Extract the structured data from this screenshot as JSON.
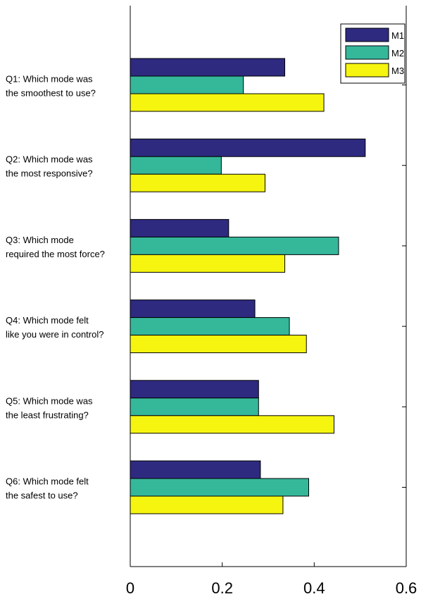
{
  "chart_data": {
    "type": "bar",
    "orientation": "horizontal",
    "categories": [
      [
        "Q1: Which mode was",
        "the smoothest to use?"
      ],
      [
        "Q2: Which mode was",
        "the most responsive?"
      ],
      [
        "Q3: Which mode",
        "required the most force?"
      ],
      [
        "Q4: Which mode felt",
        "like you were in control?"
      ],
      [
        "Q5: Which mode was",
        "the least frustrating?"
      ],
      [
        "Q6: Which mode felt",
        "the safest to use?"
      ]
    ],
    "series": [
      {
        "name": "M1",
        "color": "#2e2a80",
        "values": [
          0.336,
          0.511,
          0.214,
          0.271,
          0.279,
          0.283
        ]
      },
      {
        "name": "M2",
        "color": "#35b79a",
        "values": [
          0.246,
          0.198,
          0.453,
          0.346,
          0.279,
          0.388
        ]
      },
      {
        "name": "M3",
        "color": "#f5f50f",
        "values": [
          0.421,
          0.293,
          0.336,
          0.383,
          0.443,
          0.332
        ]
      }
    ],
    "xlim": [
      0,
      0.6
    ],
    "xticks": [
      "0",
      "0.2",
      "0.4",
      "0.6"
    ],
    "title": "",
    "xlabel": "",
    "ylabel": "",
    "grid": false,
    "legend_position": "top-right"
  }
}
